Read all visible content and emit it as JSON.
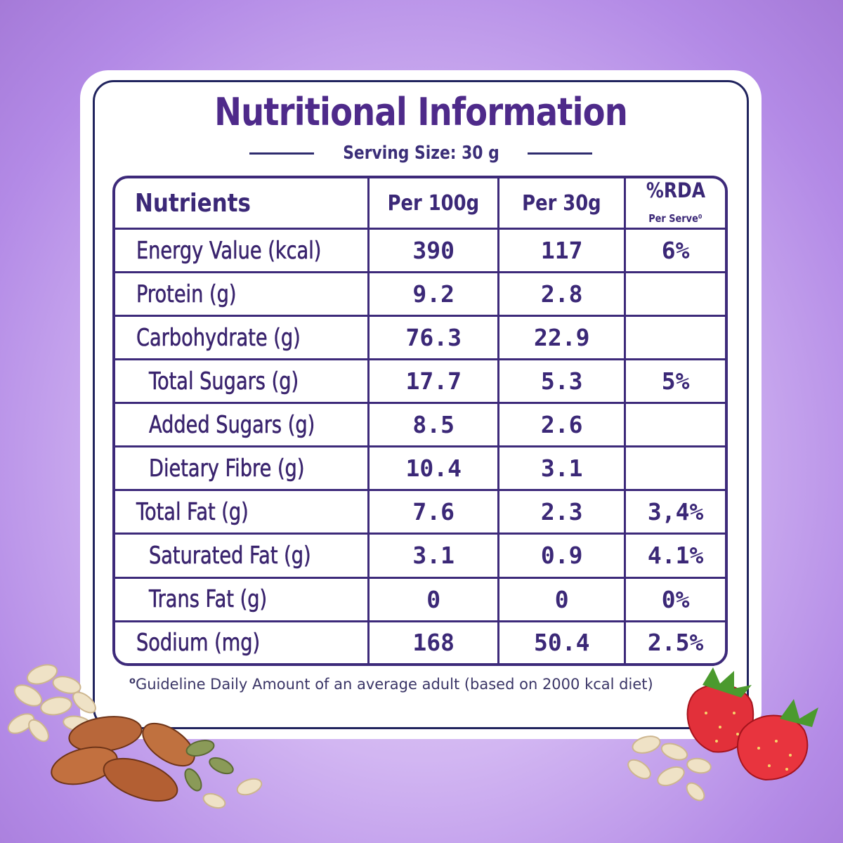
{
  "title": "Nutritional Information",
  "serving_size": "Serving Size: 30 g",
  "headers": {
    "nutrients": "Nutrients",
    "per100": "Per 100g",
    "per30": "Per 30g",
    "rda": "%RDA",
    "rda_sub": "Per Serve⁰"
  },
  "rows": [
    {
      "name": "Energy Value (kcal)",
      "per100": "390",
      "per30": "117",
      "rda": "6%"
    },
    {
      "name": "Protein (g)",
      "per100": "9.2",
      "per30": "2.8",
      "rda": ""
    },
    {
      "name": "Carbohydrate (g)",
      "per100": "76.3",
      "per30": "22.9",
      "rda": ""
    },
    {
      "name": "Total Sugars (g)",
      "per100": "17.7",
      "per30": "5.3",
      "rda": "5%"
    },
    {
      "name": "Added Sugars (g)",
      "per100": "8.5",
      "per30": "2.6",
      "rda": ""
    },
    {
      "name": "Dietary Fibre (g)",
      "per100": "10.4",
      "per30": "3.1",
      "rda": ""
    },
    {
      "name": "Total Fat (g)",
      "per100": "7.6",
      "per30": "2.3",
      "rda": "3,4%"
    },
    {
      "name": "Saturated Fat (g)",
      "per100": "3.1",
      "per30": "0.9",
      "rda": "4.1%"
    },
    {
      "name": "Trans Fat (g)",
      "per100": "0",
      "per30": "0",
      "rda": "0%"
    },
    {
      "name": "Sodium (mg)",
      "per100": "168",
      "per30": "50.4",
      "rda": "2.5%"
    }
  ],
  "footnote_mark": "o",
  "footnote": "Guideline Daily Amount of an average adult (based on 2000 kcal diet)",
  "colors": {
    "accent": "#4e2a8a",
    "border": "#3d2a7a",
    "background": "#c9a9f0"
  },
  "decorations": [
    "oats-image",
    "almonds-image",
    "pumpkin-seeds-image",
    "strawberries-image"
  ]
}
